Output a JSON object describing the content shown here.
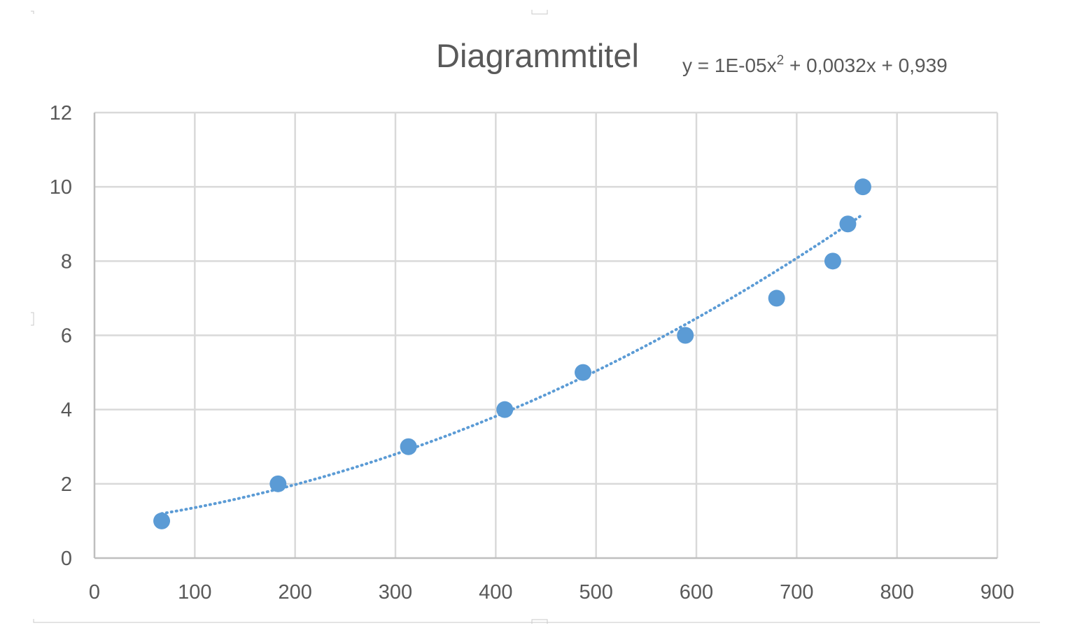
{
  "chart_data": {
    "type": "scatter",
    "title": "Diagrammtitel",
    "trendline_equation": {
      "prefix": "y = 1E-05x",
      "superscript": "2",
      "suffix": " + 0,0032x + 0,939"
    },
    "trendline": {
      "type": "polynomial",
      "order": 2,
      "coefficients": [
        1e-05,
        0.0032,
        0.939
      ],
      "style": "dotted"
    },
    "series": [
      {
        "points": [
          {
            "x": 67,
            "y": 1
          },
          {
            "x": 183,
            "y": 2
          },
          {
            "x": 313,
            "y": 3
          },
          {
            "x": 409,
            "y": 4
          },
          {
            "x": 487,
            "y": 5
          },
          {
            "x": 589,
            "y": 6
          },
          {
            "x": 680,
            "y": 7
          },
          {
            "x": 736,
            "y": 8
          },
          {
            "x": 751,
            "y": 9
          },
          {
            "x": 766,
            "y": 10
          }
        ],
        "color": "#5b9bd5"
      }
    ],
    "xlim": [
      0,
      900
    ],
    "ylim": [
      0,
      12
    ],
    "xticks": [
      0,
      100,
      200,
      300,
      400,
      500,
      600,
      700,
      800,
      900
    ],
    "yticks": [
      0,
      2,
      4,
      6,
      8,
      10,
      12
    ],
    "xlabel": "",
    "ylabel": "",
    "grid": true,
    "colors": {
      "text": "#595959",
      "grid": "#d9d9d9",
      "axis": "#bfbfbf",
      "marker": "#5b9bd5"
    }
  }
}
